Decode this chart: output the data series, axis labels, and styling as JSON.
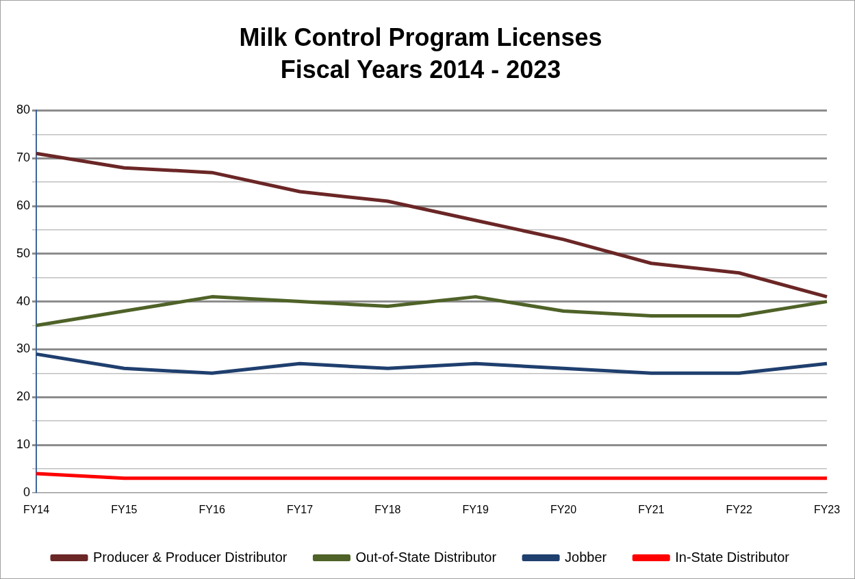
{
  "chart_data": {
    "type": "line",
    "title": "Milk Control Program Licenses",
    "subtitle": "Fiscal Years 2014 - 2023",
    "categories": [
      "FY14",
      "FY15",
      "FY16",
      "FY17",
      "FY18",
      "FY19",
      "FY20",
      "FY21",
      "FY22",
      "FY23"
    ],
    "series": [
      {
        "name": "Producer & Producer Distributor",
        "color": "#6b2626",
        "values": [
          71,
          68,
          67,
          63,
          61,
          57,
          53,
          48,
          46,
          41
        ]
      },
      {
        "name": "Out-of-State Distributor",
        "color": "#4f6228",
        "values": [
          35,
          38,
          41,
          40,
          39,
          41,
          38,
          37,
          37,
          40
        ]
      },
      {
        "name": "Jobber",
        "color": "#1f3f6e",
        "values": [
          29,
          26,
          25,
          27,
          26,
          27,
          26,
          25,
          25,
          27
        ]
      },
      {
        "name": "In-State Distributor",
        "color": "#ff0000",
        "values": [
          4,
          3,
          3,
          3,
          3,
          3,
          3,
          3,
          3,
          3
        ]
      }
    ],
    "ylim": [
      0,
      80
    ],
    "yticks": [
      0,
      {
        "value": 5,
        "label": null
      },
      10,
      {
        "value": 15,
        "label": null
      },
      20,
      {
        "value": 25,
        "label": null
      },
      30,
      {
        "value": 35,
        "label": null
      },
      40,
      {
        "value": 45,
        "label": null
      },
      50,
      {
        "value": 55,
        "label": null
      },
      60,
      {
        "value": 65,
        "label": null
      },
      70,
      {
        "value": 75,
        "label": null
      },
      80
    ],
    "grid": "y",
    "legend": "bottom",
    "marker": "none",
    "line_style": "solid"
  }
}
